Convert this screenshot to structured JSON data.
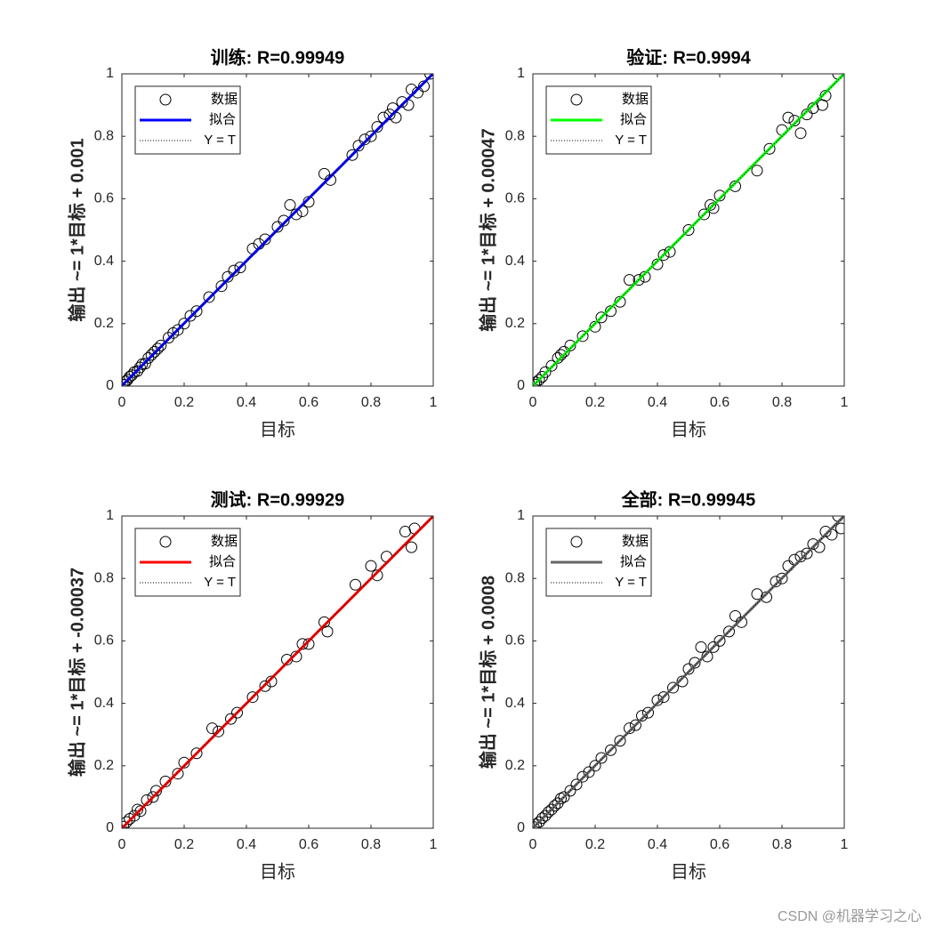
{
  "chart_data": [
    {
      "type": "scatter",
      "title": "训练: R=0.99949",
      "xlabel": "目标",
      "ylabel": "输出 ~= 1*目标 + 0.001",
      "xlim": [
        0,
        1
      ],
      "ylim": [
        0,
        1
      ],
      "xticks": [
        0,
        0.2,
        0.4,
        0.6,
        0.8,
        1
      ],
      "yticks": [
        0,
        0.2,
        0.4,
        0.6,
        0.8,
        1
      ],
      "legend": "upper left",
      "series": [
        {
          "name": "数据",
          "color": "#000000",
          "marker": "circle",
          "x": [
            0.003,
            0.008,
            0.012,
            0.018,
            0.025,
            0.032,
            0.04,
            0.05,
            0.058,
            0.065,
            0.075,
            0.085,
            0.095,
            0.105,
            0.115,
            0.125,
            0.15,
            0.165,
            0.18,
            0.2,
            0.22,
            0.24,
            0.28,
            0.32,
            0.34,
            0.36,
            0.38,
            0.42,
            0.44,
            0.46,
            0.5,
            0.52,
            0.54,
            0.56,
            0.58,
            0.6,
            0.65,
            0.67,
            0.74,
            0.76,
            0.78,
            0.8,
            0.82,
            0.84,
            0.86,
            0.87,
            0.88,
            0.9,
            0.92,
            0.93,
            0.95,
            0.97,
            0.99
          ],
          "values": [
            0.005,
            0.004,
            0.015,
            0.02,
            0.03,
            0.035,
            0.045,
            0.048,
            0.06,
            0.07,
            0.072,
            0.09,
            0.1,
            0.11,
            0.12,
            0.13,
            0.155,
            0.17,
            0.18,
            0.2,
            0.225,
            0.24,
            0.285,
            0.32,
            0.35,
            0.37,
            0.38,
            0.44,
            0.455,
            0.47,
            0.51,
            0.53,
            0.58,
            0.55,
            0.56,
            0.59,
            0.68,
            0.66,
            0.74,
            0.77,
            0.79,
            0.8,
            0.83,
            0.86,
            0.87,
            0.89,
            0.86,
            0.91,
            0.9,
            0.95,
            0.94,
            0.96,
            1.0
          ]
        },
        {
          "name": "拟合",
          "color": "#0000ff",
          "linestyle": "solid",
          "x": [
            0,
            1
          ],
          "values": [
            0.001,
            1.001
          ]
        },
        {
          "name": "Y = T",
          "color": "#000000",
          "linestyle": "dotted",
          "x": [
            0,
            1
          ],
          "values": [
            0,
            1
          ]
        }
      ]
    },
    {
      "type": "scatter",
      "title": "验证: R=0.9994",
      "xlabel": "目标",
      "ylabel": "输出 ~= 1*目标 + 0.00047",
      "xlim": [
        0,
        1
      ],
      "ylim": [
        0,
        1
      ],
      "xticks": [
        0,
        0.2,
        0.4,
        0.6,
        0.8,
        1
      ],
      "yticks": [
        0,
        0.2,
        0.4,
        0.6,
        0.8,
        1
      ],
      "legend": "upper left",
      "series": [
        {
          "name": "数据",
          "color": "#000000",
          "marker": "circle",
          "x": [
            0.005,
            0.01,
            0.02,
            0.03,
            0.04,
            0.06,
            0.08,
            0.09,
            0.1,
            0.12,
            0.16,
            0.2,
            0.22,
            0.25,
            0.28,
            0.31,
            0.34,
            0.36,
            0.4,
            0.42,
            0.44,
            0.5,
            0.55,
            0.57,
            0.58,
            0.6,
            0.65,
            0.72,
            0.76,
            0.8,
            0.82,
            0.84,
            0.86,
            0.88,
            0.9,
            0.93,
            0.94,
            0.98
          ],
          "values": [
            0.005,
            0.012,
            0.02,
            0.03,
            0.045,
            0.065,
            0.09,
            0.1,
            0.11,
            0.13,
            0.16,
            0.19,
            0.22,
            0.24,
            0.27,
            0.34,
            0.34,
            0.35,
            0.39,
            0.42,
            0.43,
            0.5,
            0.55,
            0.58,
            0.57,
            0.61,
            0.64,
            0.69,
            0.76,
            0.82,
            0.86,
            0.85,
            0.81,
            0.87,
            0.89,
            0.9,
            0.93,
            1.0
          ]
        },
        {
          "name": "拟合",
          "color": "#00ff00",
          "linestyle": "solid",
          "x": [
            0,
            1
          ],
          "values": [
            0.00047,
            1.00047
          ]
        },
        {
          "name": "Y = T",
          "color": "#000000",
          "linestyle": "dotted",
          "x": [
            0,
            1
          ],
          "values": [
            0,
            1
          ]
        }
      ]
    },
    {
      "type": "scatter",
      "title": "测试: R=0.99929",
      "xlabel": "目标",
      "ylabel": "输出 ~= 1*目标 + -0.00037",
      "xlim": [
        0,
        1
      ],
      "ylim": [
        0,
        1
      ],
      "xticks": [
        0,
        0.2,
        0.4,
        0.6,
        0.8,
        1
      ],
      "yticks": [
        0,
        0.2,
        0.4,
        0.6,
        0.8,
        1
      ],
      "legend": "upper left",
      "series": [
        {
          "name": "数据",
          "color": "#000000",
          "marker": "circle",
          "x": [
            0.005,
            0.015,
            0.025,
            0.04,
            0.05,
            0.06,
            0.08,
            0.1,
            0.11,
            0.14,
            0.18,
            0.2,
            0.24,
            0.29,
            0.31,
            0.35,
            0.37,
            0.42,
            0.46,
            0.48,
            0.53,
            0.56,
            0.58,
            0.6,
            0.65,
            0.66,
            0.75,
            0.8,
            0.82,
            0.85,
            0.91,
            0.93,
            0.94
          ],
          "values": [
            0.005,
            0.02,
            0.03,
            0.04,
            0.06,
            0.055,
            0.09,
            0.1,
            0.12,
            0.15,
            0.175,
            0.21,
            0.24,
            0.32,
            0.31,
            0.35,
            0.37,
            0.42,
            0.455,
            0.47,
            0.54,
            0.55,
            0.59,
            0.59,
            0.66,
            0.63,
            0.78,
            0.84,
            0.81,
            0.87,
            0.95,
            0.9,
            0.96
          ]
        },
        {
          "name": "拟合",
          "color": "#ff0000",
          "linestyle": "solid",
          "x": [
            0,
            1
          ],
          "values": [
            -0.00037,
            0.99963
          ]
        },
        {
          "name": "Y = T",
          "color": "#000000",
          "linestyle": "dotted",
          "x": [
            0,
            1
          ],
          "values": [
            0,
            1
          ]
        }
      ]
    },
    {
      "type": "scatter",
      "title": "全部: R=0.99945",
      "xlabel": "目标",
      "ylabel": "输出 ~= 1*目标 + 0.0008",
      "xlim": [
        0,
        1
      ],
      "ylim": [
        0,
        1
      ],
      "xticks": [
        0,
        0.2,
        0.4,
        0.6,
        0.8,
        1
      ],
      "yticks": [
        0,
        0.2,
        0.4,
        0.6,
        0.8,
        1
      ],
      "legend": "upper left",
      "series": [
        {
          "name": "数据",
          "color": "#000000",
          "marker": "circle",
          "x": [
            0.003,
            0.01,
            0.02,
            0.03,
            0.04,
            0.05,
            0.06,
            0.07,
            0.08,
            0.09,
            0.1,
            0.12,
            0.14,
            0.16,
            0.18,
            0.2,
            0.22,
            0.25,
            0.28,
            0.31,
            0.33,
            0.35,
            0.37,
            0.4,
            0.42,
            0.45,
            0.48,
            0.5,
            0.52,
            0.54,
            0.56,
            0.58,
            0.6,
            0.63,
            0.65,
            0.67,
            0.72,
            0.75,
            0.78,
            0.8,
            0.82,
            0.84,
            0.86,
            0.88,
            0.9,
            0.92,
            0.94,
            0.96,
            0.98,
            0.99
          ],
          "values": [
            0.004,
            0.012,
            0.02,
            0.032,
            0.04,
            0.052,
            0.06,
            0.072,
            0.08,
            0.095,
            0.1,
            0.12,
            0.14,
            0.165,
            0.18,
            0.2,
            0.225,
            0.25,
            0.28,
            0.32,
            0.33,
            0.36,
            0.37,
            0.41,
            0.42,
            0.45,
            0.47,
            0.51,
            0.53,
            0.58,
            0.55,
            0.58,
            0.6,
            0.63,
            0.68,
            0.66,
            0.75,
            0.74,
            0.79,
            0.8,
            0.84,
            0.86,
            0.87,
            0.88,
            0.91,
            0.9,
            0.95,
            0.94,
            1.0,
            0.96
          ]
        },
        {
          "name": "拟合",
          "color": "#666666",
          "linestyle": "solid",
          "x": [
            0,
            1
          ],
          "values": [
            0.0008,
            1.0008
          ]
        },
        {
          "name": "Y = T",
          "color": "#000000",
          "linestyle": "dotted",
          "x": [
            0,
            1
          ],
          "values": [
            0,
            1
          ]
        }
      ]
    }
  ],
  "watermark": "CSDN @机器学习之心"
}
